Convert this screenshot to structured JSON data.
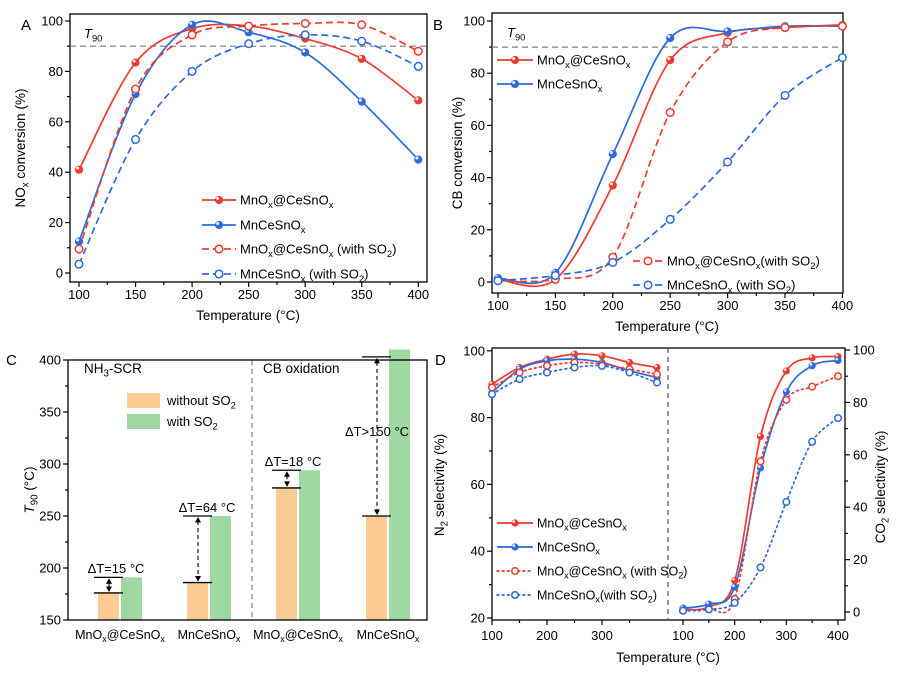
{
  "figure": {
    "background": "#ffffff",
    "colors": {
      "red": "#EE3B2F",
      "blue": "#2B6BDB",
      "grey": "#7F7F7F",
      "orange_bar": "#FDCB94",
      "green_bar": "#A0D8A1"
    }
  },
  "chart_data": [
    {
      "id": "A",
      "type": "line",
      "panel_label": "A",
      "xlabel": "Temperature (°C)",
      "ylabel": "NO~x~ conversion  (%)",
      "xlim": [
        100,
        400
      ],
      "ylim": [
        0,
        100
      ],
      "xticks": [
        100,
        150,
        200,
        250,
        300,
        350,
        400
      ],
      "yticks": [
        0,
        20,
        40,
        60,
        80,
        100
      ],
      "ref_line": {
        "value": 90,
        "label": "*T*~90~"
      },
      "x": [
        100,
        150,
        200,
        250,
        300,
        350,
        400
      ],
      "series": [
        {
          "name": "MnO~x~@CeSnO~x~",
          "color": "red",
          "line": "solid",
          "marker": "filled",
          "values": [
            41,
            83.5,
            97,
            98,
            93,
            85,
            68.5
          ]
        },
        {
          "name": "MnCeSnO~x~",
          "color": "blue",
          "line": "solid",
          "marker": "filled",
          "values": [
            12.5,
            71,
            98.5,
            95.5,
            87.5,
            68,
            45
          ]
        },
        {
          "name": "MnO~x~@CeSnO~x~ (with SO~2~)",
          "color": "red",
          "line": "dashed",
          "marker": "open",
          "values": [
            9.5,
            73,
            94.5,
            98,
            99,
            98.5,
            88
          ]
        },
        {
          "name": "MnCeSnO~x~ (with SO~2~)",
          "color": "blue",
          "line": "dashed",
          "marker": "open",
          "values": [
            3.5,
            53,
            80,
            91,
            94.5,
            92,
            82
          ]
        }
      ]
    },
    {
      "id": "B",
      "type": "line",
      "panel_label": "B",
      "xlabel": "Temperature (°C)",
      "ylabel": "CB conversion (%)",
      "xlim": [
        100,
        400
      ],
      "ylim": [
        0,
        100
      ],
      "xticks": [
        100,
        150,
        200,
        250,
        300,
        350,
        400
      ],
      "yticks": [
        0,
        20,
        40,
        60,
        80,
        100
      ],
      "ref_line": {
        "value": 90,
        "label": "*T*~90~"
      },
      "x": [
        100,
        150,
        200,
        250,
        300,
        350,
        400
      ],
      "series": [
        {
          "name": "MnO~x~@CeSnO~x~",
          "color": "red",
          "line": "solid",
          "marker": "filled",
          "values": [
            1,
            1,
            37,
            85,
            95.5,
            97.5,
            98.5
          ]
        },
        {
          "name": "MnCeSnO~x~",
          "color": "blue",
          "line": "solid",
          "marker": "filled",
          "values": [
            1.5,
            3.5,
            49,
            93.5,
            96,
            98,
            98
          ]
        },
        {
          "name": "MnO~x~@CeSnO~x~(with SO~2~)",
          "color": "red",
          "line": "dashed",
          "marker": "open",
          "values": [
            0.5,
            1,
            9.5,
            65,
            92,
            97.5,
            98
          ]
        },
        {
          "name": "MnCeSnO~x~ (with SO~2~)",
          "color": "blue",
          "line": "dashed",
          "marker": "open",
          "values": [
            0.5,
            2.5,
            7.5,
            24,
            46,
            71.5,
            86
          ]
        }
      ]
    },
    {
      "id": "C",
      "type": "bar",
      "panel_label": "C",
      "ylabel": "*T*~90~ (°C)",
      "ylim": [
        150,
        400
      ],
      "yticks": [
        150,
        200,
        250,
        300,
        350,
        400
      ],
      "section_labels": [
        "NH~3~-SCR",
        "CB oxidation"
      ],
      "legend": [
        {
          "label": "without SO~2~",
          "color": "orange_bar"
        },
        {
          "label": "with SO~2~",
          "color": "green_bar"
        }
      ],
      "groups": [
        {
          "category": "MnO~x~@CeSnO~x~",
          "section": "NH3-SCR",
          "without_so2": 176,
          "with_so2": 191,
          "delta_label": "ΔT=15 °C"
        },
        {
          "category": "MnCeSnO~x~",
          "section": "NH3-SCR",
          "without_so2": 186,
          "with_so2": 250,
          "delta_label": "ΔT=64 °C"
        },
        {
          "category": "MnO~x~@CeSnO~x~",
          "section": "CB oxidation",
          "without_so2": 277,
          "with_so2": 294,
          "delta_label": "ΔT=18 °C"
        },
        {
          "category": "MnCeSnO~x~",
          "section": "CB oxidation",
          "without_so2": 250,
          "with_so2": 410,
          "with_so2_exceeds_axis": true,
          "delta_label": "ΔT>150 °C"
        }
      ]
    },
    {
      "id": "D",
      "type": "dual-line",
      "panel_label": "D",
      "xlabel": "Temperature (°C)",
      "left_ylabel": "N~2~ selectivity (%)",
      "right_ylabel": "CO~2~ selectivity (%)",
      "left_ylim": [
        20,
        100
      ],
      "right_ylim": [
        0,
        100
      ],
      "left_yticks": [
        20,
        40,
        60,
        80,
        100
      ],
      "right_yticks": [
        0,
        20,
        40,
        60,
        80,
        100
      ],
      "left_xticks": [
        100,
        200,
        300
      ],
      "right_xticks": [
        100,
        200,
        300,
        400
      ],
      "x": [
        100,
        150,
        200,
        250,
        300,
        350,
        400
      ],
      "series": [
        {
          "name": "MnO~x~@CeSnO~x~",
          "color": "red",
          "line": "solid",
          "marker": "filled",
          "n2_values": [
            90,
            95,
            97.5,
            99,
            98.5,
            96.5,
            95
          ],
          "co2_values": [
            1,
            2,
            12,
            67,
            92,
            97,
            97.5
          ]
        },
        {
          "name": "MnCeSnO~x~",
          "color": "blue",
          "line": "solid",
          "marker": "filled",
          "n2_values": [
            87.5,
            94.5,
            97,
            97.5,
            96.5,
            94,
            92
          ],
          "co2_values": [
            1.5,
            3,
            9.5,
            55,
            84,
            94,
            96
          ]
        },
        {
          "name": "MnO~x~@CeSnO~x~ (with SO~2~)",
          "color": "red",
          "line": "dotted",
          "marker": "open",
          "n2_values": [
            89,
            93.5,
            95.5,
            96.5,
            96,
            94.5,
            93
          ],
          "co2_values": [
            0.5,
            1,
            5,
            57.5,
            81,
            86,
            90
          ]
        },
        {
          "name": "MnCeSnO~x~(with SO~2~)",
          "color": "blue",
          "line": "dotted",
          "marker": "open",
          "n2_values": [
            87,
            91.5,
            93.5,
            95,
            95.5,
            93.5,
            90.5
          ],
          "co2_values": [
            0.5,
            1,
            3.5,
            17,
            42,
            65,
            74
          ]
        }
      ]
    }
  ]
}
